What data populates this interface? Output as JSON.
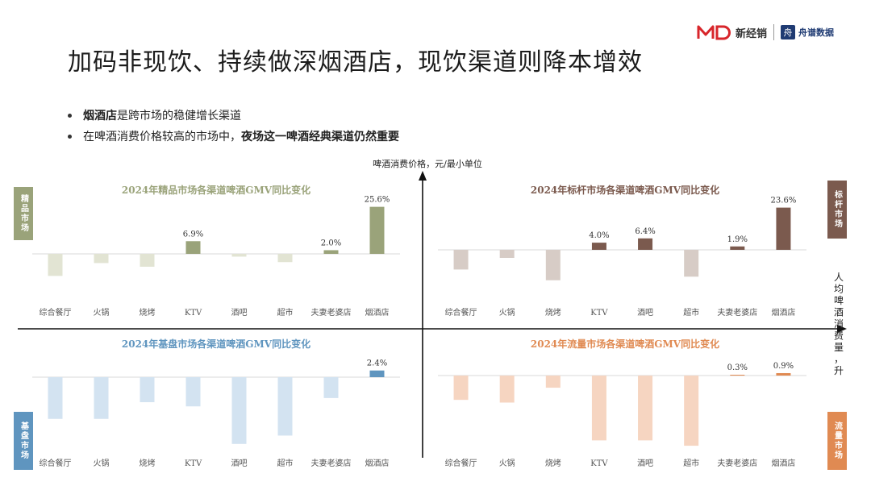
{
  "page": {
    "title": "加码非现饮、持续做深烟酒店，现饮渠道则降本增效",
    "bullets": [
      {
        "bold": "烟酒店",
        "text": "是跨市场的稳健增长渠道"
      },
      {
        "text": "在啤酒消费价格较高的市场中，",
        "bold": "夜场这一啤酒经典渠道仍然重要"
      }
    ],
    "logos": {
      "brand1": "新经销",
      "brand2": "舟谱数据"
    }
  },
  "axes": {
    "y_label": "啤酒消费价格，元/最小单位",
    "x_label": "人均啤酒消费量，升"
  },
  "tags": {
    "premium": "精品市场",
    "benchmark": "标杆市场",
    "basic": "基盘市场",
    "flow": "流量市场"
  },
  "colors": {
    "premium": "#9aa37a",
    "premium_light": "#e2e4d3",
    "benchmark": "#7b5a4e",
    "benchmark_light": "#d7ccc6",
    "basic": "#5f95bf",
    "basic_light": "#d3e3f1",
    "flow": "#e08a52",
    "flow_light": "#f6d5c1"
  },
  "chart_data": [
    {
      "type": "bar",
      "title": "2024年精品市场各渠道啤酒GMV同比变化",
      "categories": [
        "综合餐厅",
        "火锅",
        "烧烤",
        "KTV",
        "酒吧",
        "超市",
        "夫妻老婆店",
        "烟酒店"
      ],
      "values": [
        -12.0,
        -5.0,
        -7.0,
        6.9,
        -1.5,
        -4.5,
        2.0,
        25.6
      ],
      "labels": [
        "",
        "",
        "",
        "6.9%",
        "",
        "",
        "2.0%",
        "25.6%"
      ],
      "ylim": [
        -30,
        30
      ]
    },
    {
      "type": "bar",
      "title": "2024年标杆市场各渠道啤酒GMV同比变化",
      "categories": [
        "综合餐厅",
        "火锅",
        "烧烤",
        "KTV",
        "酒吧",
        "超市",
        "夫妻老婆店",
        "烟酒店"
      ],
      "values": [
        -11.0,
        -4.5,
        -17.0,
        4.0,
        6.4,
        -15.0,
        1.9,
        23.6
      ],
      "labels": [
        "",
        "",
        "",
        "4.0%",
        "6.4%",
        "",
        "1.9%",
        "23.6%"
      ],
      "ylim": [
        -30,
        30
      ]
    },
    {
      "type": "bar",
      "title": "2024年基盘市场各渠道啤酒GMV同比变化",
      "categories": [
        "综合餐厅",
        "火锅",
        "烧烤",
        "KTV",
        "酒吧",
        "超市",
        "夫妻老婆店",
        "烟酒店"
      ],
      "values": [
        -15.0,
        -15.0,
        -9.0,
        -10.5,
        -24.0,
        -21.0,
        -7.5,
        2.4
      ],
      "labels": [
        "",
        "",
        "",
        "",
        "",
        "",
        "",
        "2.4%"
      ],
      "ylim": [
        -28,
        8
      ]
    },
    {
      "type": "bar",
      "title": "2024年流量市场各渠道啤酒GMV同比变化",
      "categories": [
        "综合餐厅",
        "火锅",
        "烧烤",
        "KTV",
        "酒吧",
        "超市",
        "夫妻老婆店",
        "烟酒店"
      ],
      "values": [
        -9.0,
        -10.0,
        -4.5,
        -24.0,
        -24.0,
        -26.0,
        0.3,
        0.9
      ],
      "labels": [
        "",
        "",
        "",
        "",
        "",
        "",
        "0.3%",
        "0.9%"
      ],
      "ylim": [
        -28,
        8
      ]
    }
  ]
}
